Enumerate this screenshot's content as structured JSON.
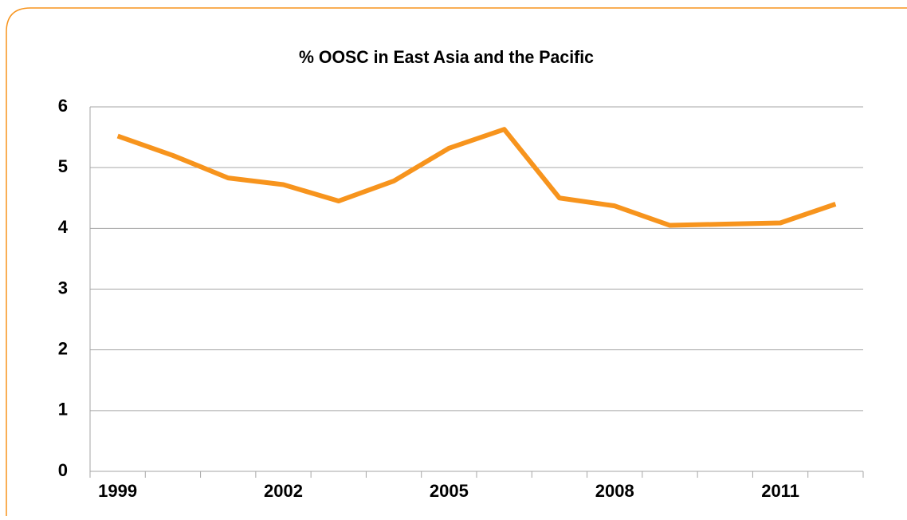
{
  "chart_data": {
    "type": "line",
    "title": "% OOSC in East Asia and the Pacific",
    "categories": [
      "1999",
      null,
      null,
      "2002",
      null,
      null,
      "2005",
      null,
      null,
      "2008",
      null,
      null,
      "2011",
      null
    ],
    "series": [
      {
        "name": "% OOSC",
        "color": "#f7941d",
        "values": [
          5.52,
          5.2,
          4.83,
          4.72,
          4.45,
          4.78,
          5.32,
          5.63,
          4.5,
          4.37,
          4.05,
          4.07,
          4.09,
          4.4
        ]
      }
    ],
    "ylim": [
      0,
      6
    ],
    "yticks": [
      0,
      1,
      2,
      3,
      4,
      5,
      6
    ],
    "grid": true
  }
}
